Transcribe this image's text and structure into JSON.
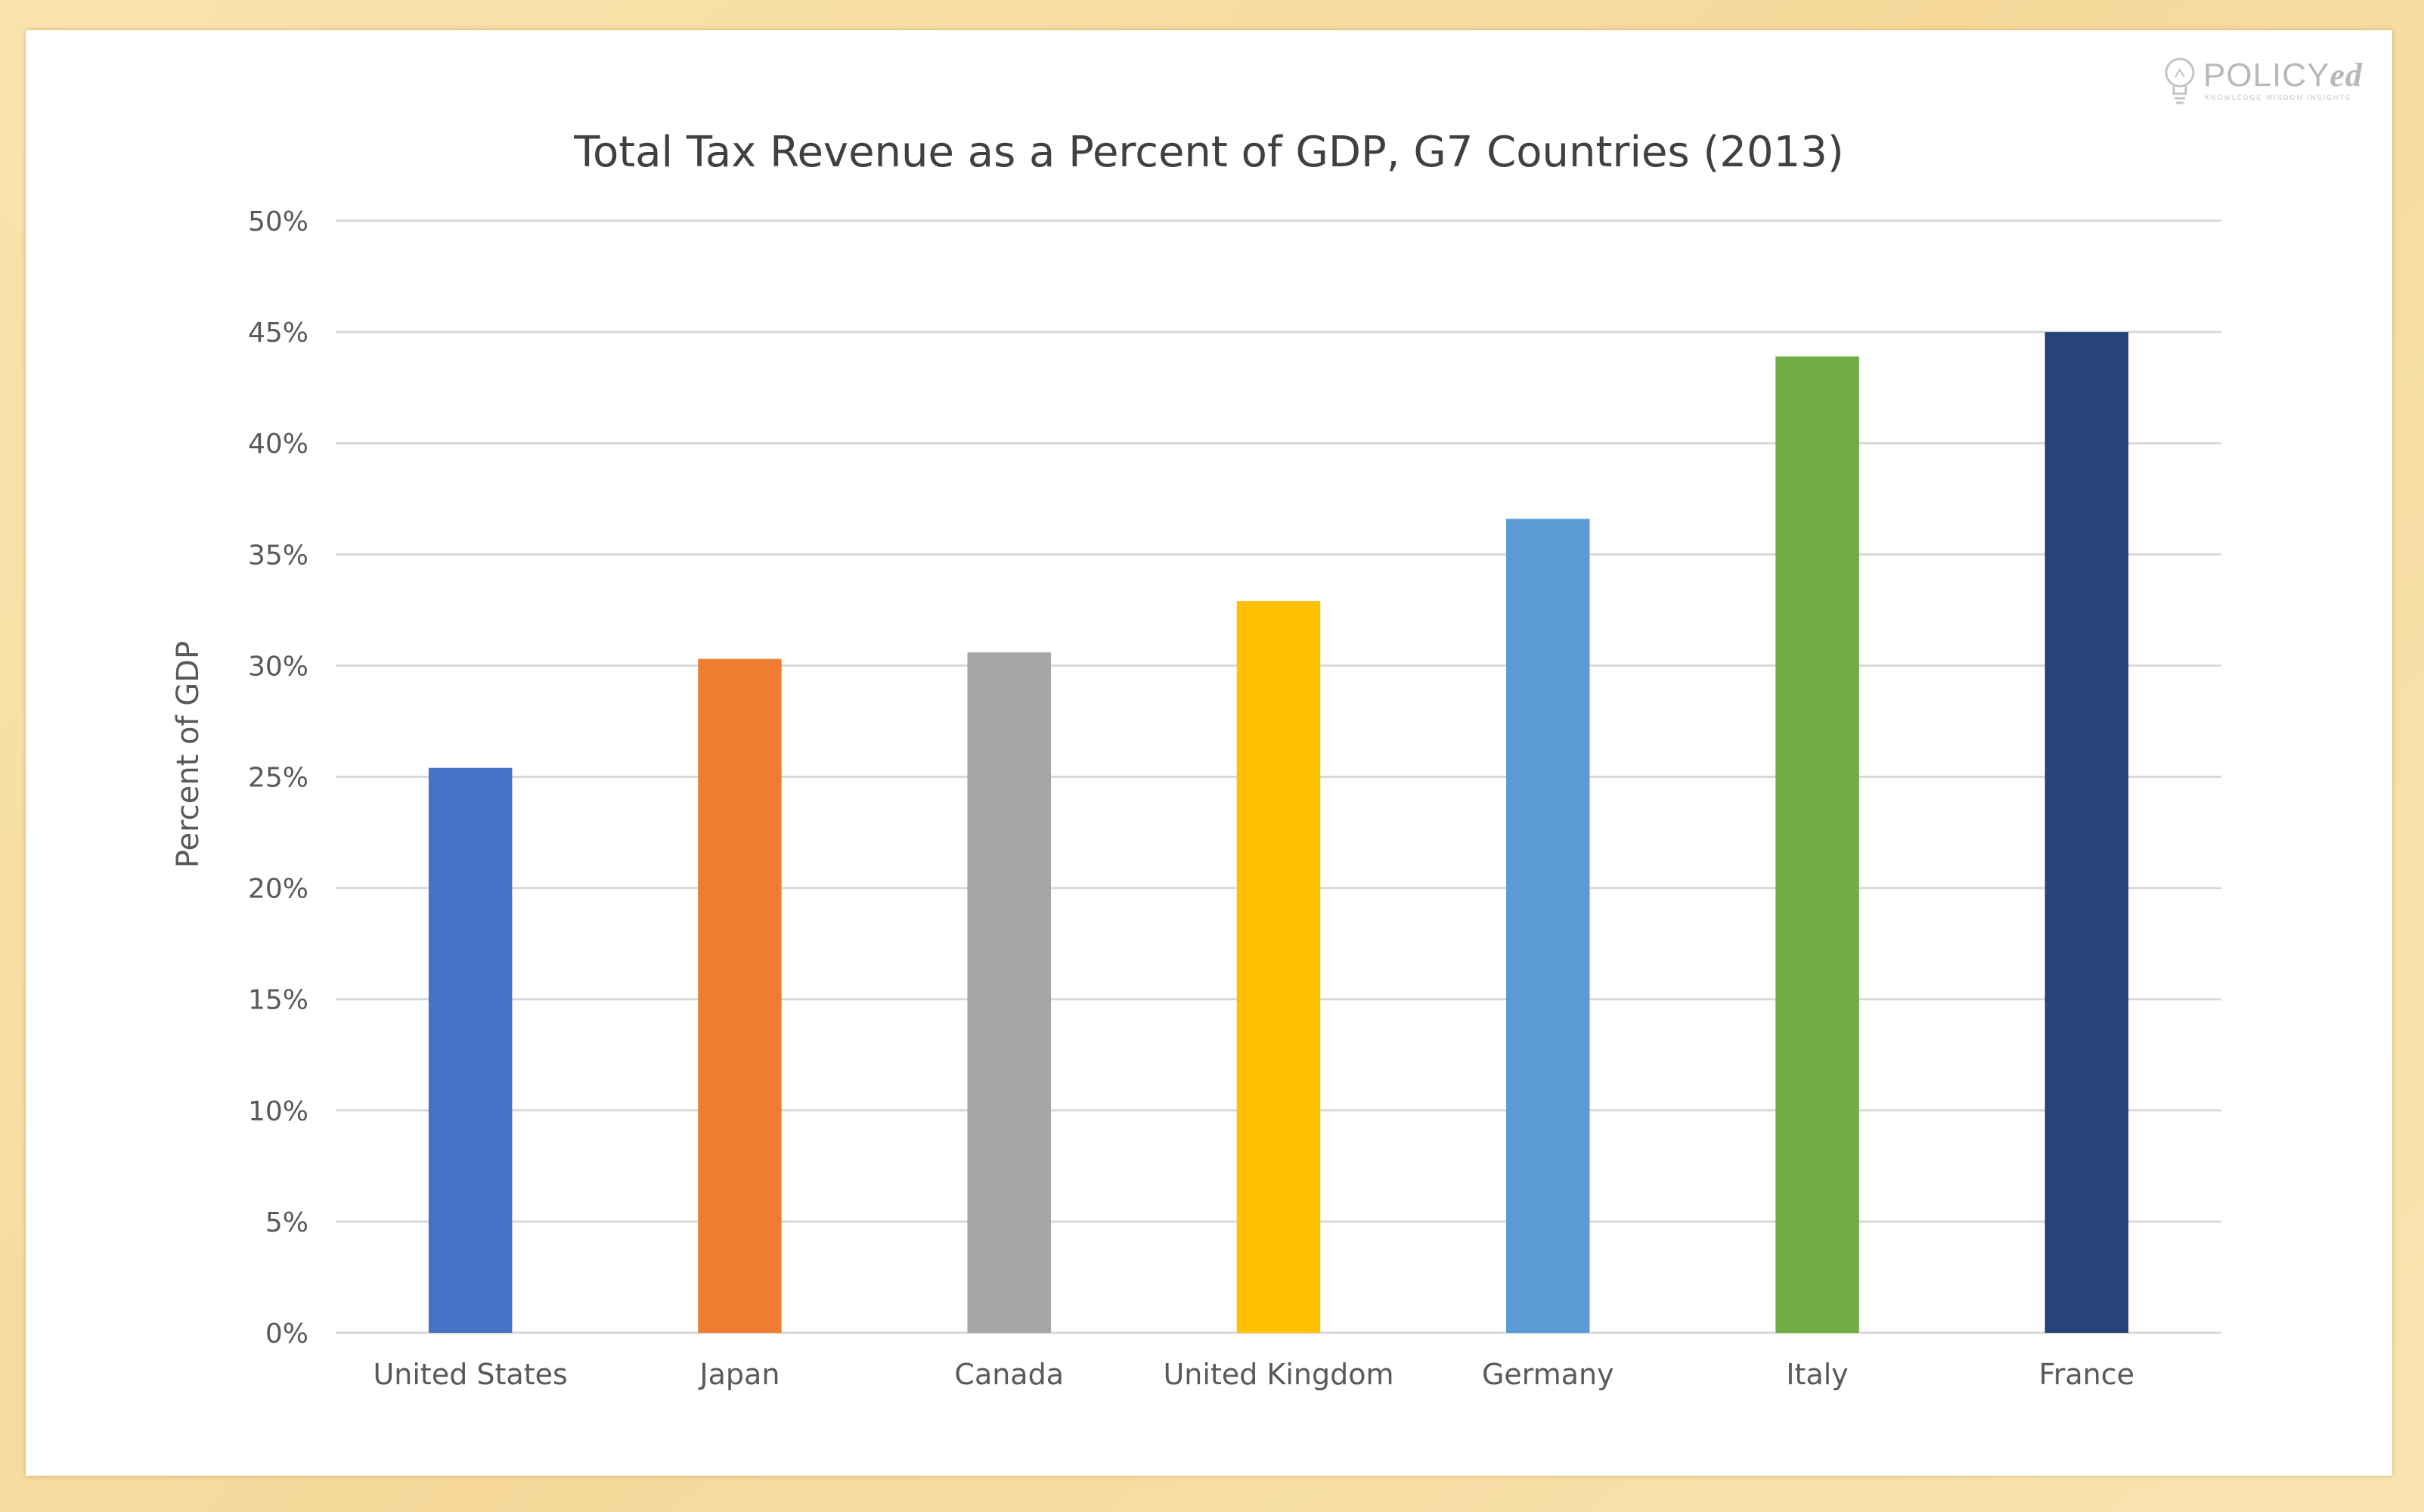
{
  "logo": {
    "name_main": "POLICY",
    "name_suffix": "ed",
    "tagline": "KNOWLEDGE WISDOM INSIGHTS",
    "icon": "lightbulb-icon"
  },
  "chart_data": {
    "type": "bar",
    "title": "Total Tax Revenue as a Percent of GDP, G7 Countries (2013)",
    "xlabel": "",
    "ylabel": "Percent of GDP",
    "ylim": [
      0,
      50
    ],
    "yticks": [
      0,
      5,
      10,
      15,
      20,
      25,
      30,
      35,
      40,
      45,
      50
    ],
    "ytick_labels": [
      "0%",
      "5%",
      "10%",
      "15%",
      "20%",
      "25%",
      "30%",
      "35%",
      "40%",
      "45%",
      "50%"
    ],
    "grid": true,
    "legend": "none",
    "categories": [
      "United States",
      "Japan",
      "Canada",
      "United Kingdom",
      "Germany",
      "Italy",
      "France"
    ],
    "values": [
      25.4,
      30.3,
      30.6,
      32.9,
      36.6,
      43.9,
      45.0
    ],
    "colors": [
      "#4472c4",
      "#ed7d31",
      "#a5a5a5",
      "#ffc000",
      "#5b9bd5",
      "#70ad47",
      "#264478"
    ]
  }
}
